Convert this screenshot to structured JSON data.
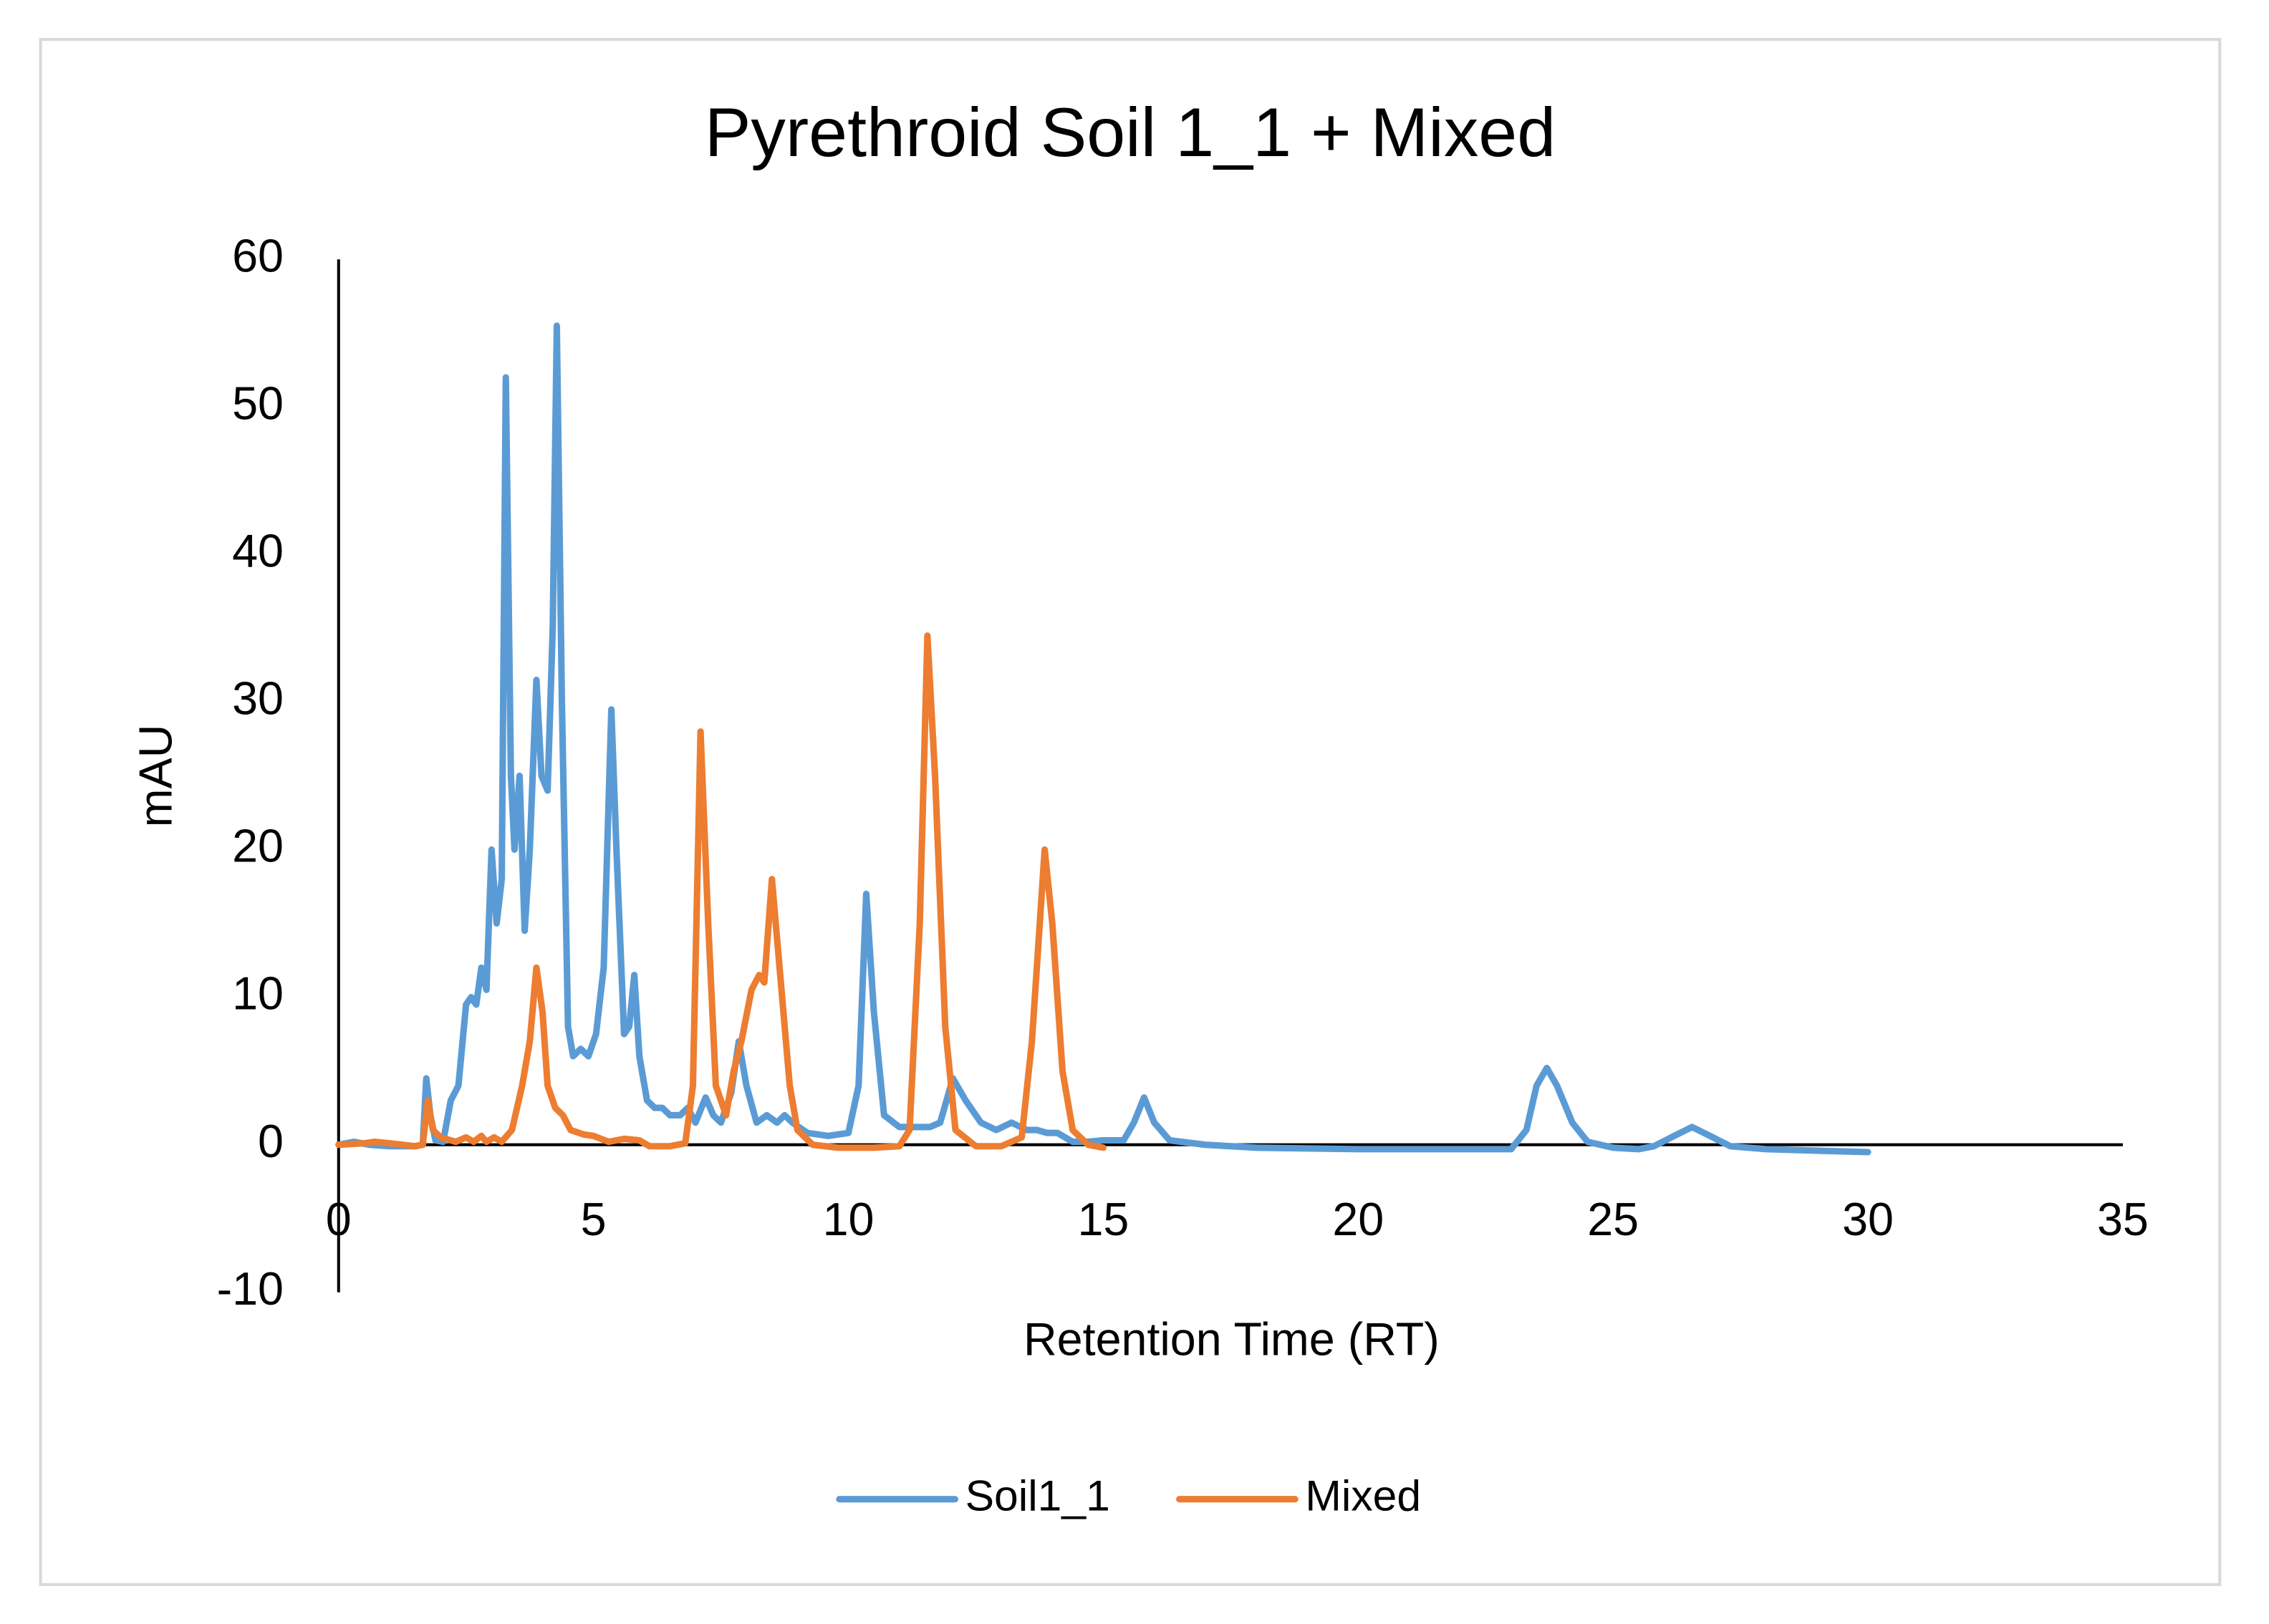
{
  "chart_data": {
    "type": "line",
    "title": "Pyrethroid Soil 1_1 + Mixed",
    "x_label": "Retention Time (RT)",
    "y_label": "mAU",
    "xlim": [
      0,
      35
    ],
    "xticks": [
      0,
      5,
      10,
      15,
      20,
      25,
      30,
      35
    ],
    "ylim": [
      -10,
      60
    ],
    "yticks": [
      -10,
      0,
      10,
      20,
      30,
      40,
      50,
      60
    ],
    "grid": false,
    "legend": "bottom",
    "series": [
      {
        "name": "Soil1_1",
        "color": "#5b9bd5",
        "x": [
          0,
          0.3,
          0.6,
          1.0,
          1.5,
          1.65,
          1.72,
          1.8,
          1.9,
          2.05,
          2.2,
          2.35,
          2.5,
          2.6,
          2.7,
          2.8,
          2.9,
          3.0,
          3.1,
          3.2,
          3.28,
          3.38,
          3.45,
          3.55,
          3.65,
          3.75,
          3.88,
          3.98,
          4.1,
          4.2,
          4.28,
          4.38,
          4.5,
          4.6,
          4.75,
          4.9,
          5.05,
          5.2,
          5.35,
          5.45,
          5.6,
          5.7,
          5.8,
          5.9,
          6.05,
          6.2,
          6.35,
          6.5,
          6.7,
          6.85,
          7.0,
          7.2,
          7.35,
          7.5,
          7.7,
          7.85,
          8.0,
          8.2,
          8.4,
          8.6,
          8.75,
          8.9,
          9.2,
          9.6,
          10.0,
          10.2,
          10.35,
          10.5,
          10.7,
          11.0,
          11.3,
          11.6,
          11.8,
          12.05,
          12.3,
          12.6,
          12.9,
          13.2,
          13.5,
          13.7,
          13.9,
          14.1,
          14.4,
          14.7,
          15.0,
          15.4,
          15.6,
          15.8,
          16.0,
          16.3,
          17,
          18,
          20,
          22,
          23,
          23.3,
          23.5,
          23.7,
          23.9,
          24.2,
          24.5,
          25,
          25.5,
          25.8,
          26.2,
          26.55,
          26.9,
          27.3,
          28,
          29,
          30
        ],
        "values": [
          0,
          0.2,
          0,
          -0.1,
          -0.1,
          0,
          4.5,
          2,
          0.3,
          0.2,
          3,
          4,
          9.5,
          10,
          9.5,
          12,
          10.5,
          20,
          15,
          18,
          52,
          25,
          20,
          25,
          14.5,
          20,
          31.5,
          25,
          24,
          35,
          55.5,
          30,
          8,
          6,
          6.5,
          6,
          7.5,
          12,
          29.5,
          20,
          7.5,
          8,
          11.5,
          6,
          3,
          2.5,
          2.5,
          2,
          2,
          2.5,
          1.5,
          3.2,
          2,
          1.5,
          3.5,
          7,
          4,
          1.5,
          2,
          1.5,
          2,
          1.5,
          0.8,
          0.6,
          0.8,
          4,
          17,
          9,
          2,
          1.2,
          1.2,
          1.2,
          1.5,
          4.5,
          3,
          1.5,
          1,
          1.5,
          1,
          1,
          0.8,
          0.8,
          0.2,
          0.2,
          0.3,
          0.3,
          1.5,
          3.2,
          1.5,
          0.3,
          0,
          -0.2,
          -0.3,
          -0.3,
          -0.3,
          1,
          4,
          5.2,
          4,
          1.5,
          0.2,
          -0.2,
          -0.3,
          -0.1,
          0.6,
          1.2,
          0.6,
          -0.1,
          -0.3,
          -0.4,
          -0.5
        ]
      },
      {
        "name": "Mixed",
        "color": "#ed7d31",
        "x": [
          0,
          0.5,
          0.7,
          1.0,
          1.5,
          1.65,
          1.75,
          1.85,
          2.0,
          2.3,
          2.5,
          2.65,
          2.8,
          2.9,
          3.05,
          3.2,
          3.4,
          3.6,
          3.75,
          3.88,
          4.0,
          4.1,
          4.25,
          4.4,
          4.55,
          4.8,
          5.0,
          5.3,
          5.6,
          5.9,
          6.1,
          6.5,
          6.8,
          6.95,
          7.1,
          7.25,
          7.4,
          7.6,
          7.75,
          7.9,
          8.1,
          8.25,
          8.35,
          8.5,
          8.65,
          8.85,
          9.0,
          9.3,
          9.8,
          10.5,
          11.0,
          11.2,
          11.4,
          11.55,
          11.7,
          11.9,
          12.1,
          12.5,
          13.0,
          13.4,
          13.6,
          13.85,
          14.0,
          14.2,
          14.4,
          14.7,
          15.0
        ],
        "values": [
          0,
          0.1,
          0.2,
          0.1,
          -0.1,
          0,
          3,
          1,
          0.5,
          0.2,
          0.5,
          0.2,
          0.6,
          0.2,
          0.5,
          0.2,
          1,
          4,
          7,
          12,
          9,
          4,
          2.5,
          2,
          1,
          0.7,
          0.6,
          0.2,
          0.4,
          0.3,
          -0.1,
          -0.1,
          0.1,
          4,
          28,
          15,
          4,
          2,
          5,
          7,
          10.5,
          11.5,
          11,
          18,
          12,
          4,
          1,
          0,
          -0.2,
          -0.2,
          -0.1,
          1,
          15,
          34.5,
          25,
          8,
          1,
          -0.1,
          -0.1,
          0.5,
          7,
          20,
          15,
          5,
          1,
          0,
          -0.2
        ]
      }
    ]
  }
}
